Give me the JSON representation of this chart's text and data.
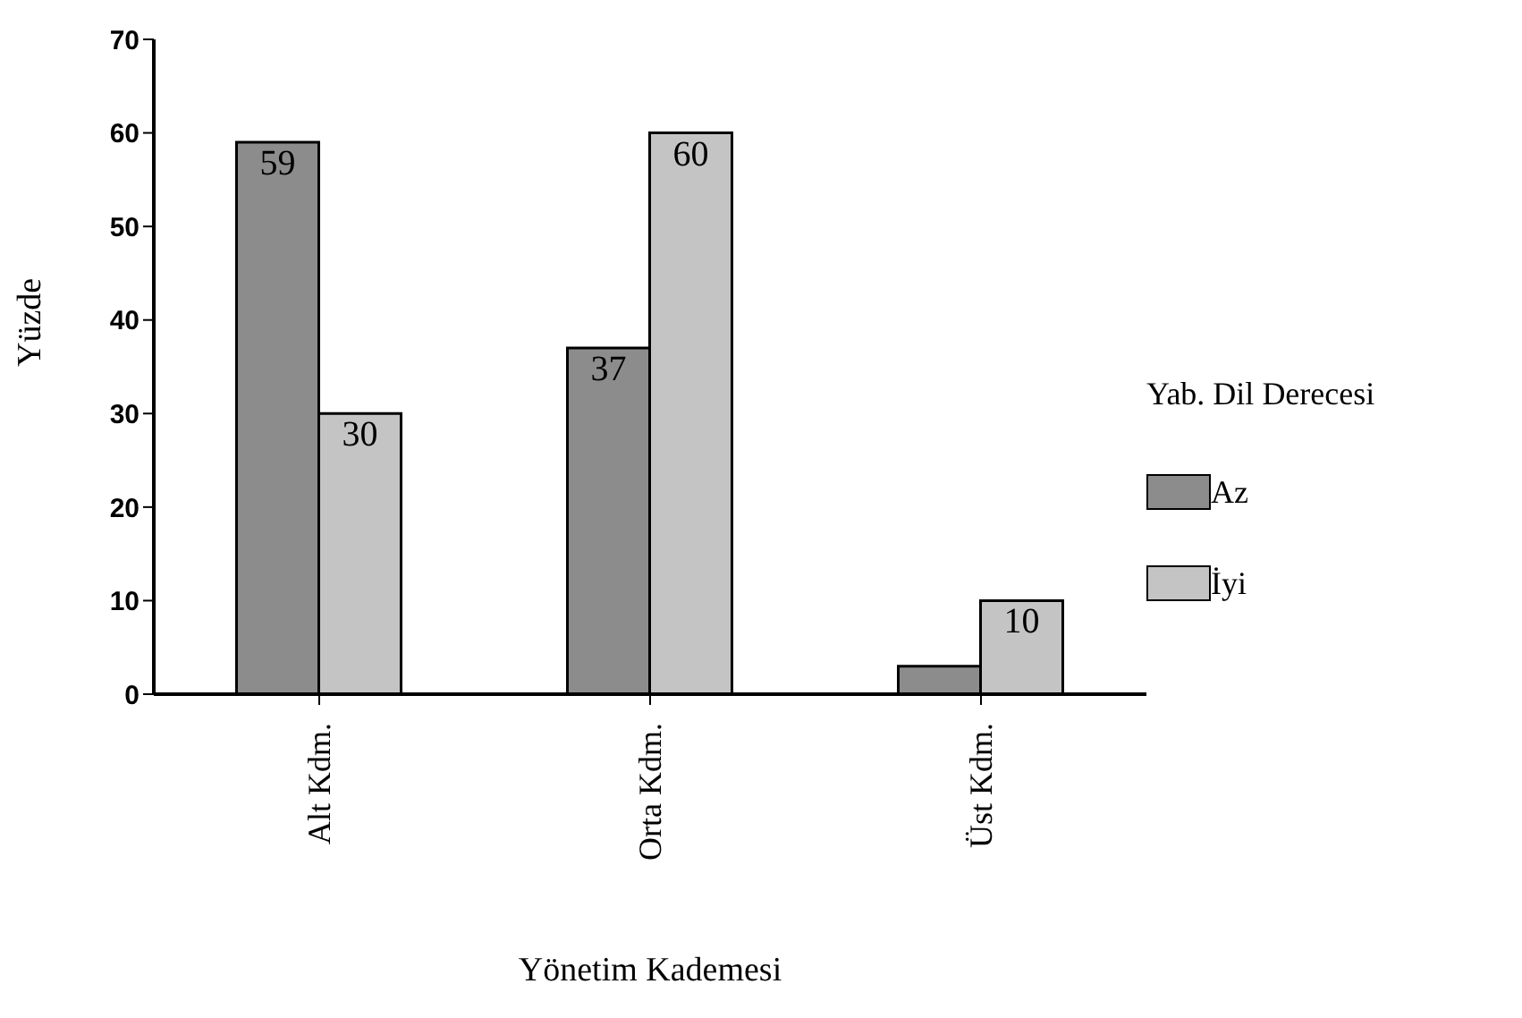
{
  "chart_data": {
    "type": "bar",
    "xlabel": "Yönetim Kademesi",
    "ylabel": "Yüzde",
    "legend_title": "Yab. Dil Derecesi",
    "categories": [
      "Alt Kdm.",
      "Orta Kdm.",
      "Üst Kdm."
    ],
    "series": [
      {
        "name": "Az",
        "color": "#8c8c8c",
        "values": [
          59,
          37,
          3
        ],
        "value_labels": [
          "59",
          "37",
          null
        ]
      },
      {
        "name": "İyi",
        "color": "#c4c4c4",
        "values": [
          30,
          60,
          10
        ],
        "value_labels": [
          "30",
          "60",
          "10"
        ]
      }
    ],
    "ylim": [
      0,
      70
    ],
    "yticks": [
      0,
      10,
      20,
      30,
      40,
      50,
      60,
      70
    ],
    "grid": false,
    "legend": "right"
  }
}
